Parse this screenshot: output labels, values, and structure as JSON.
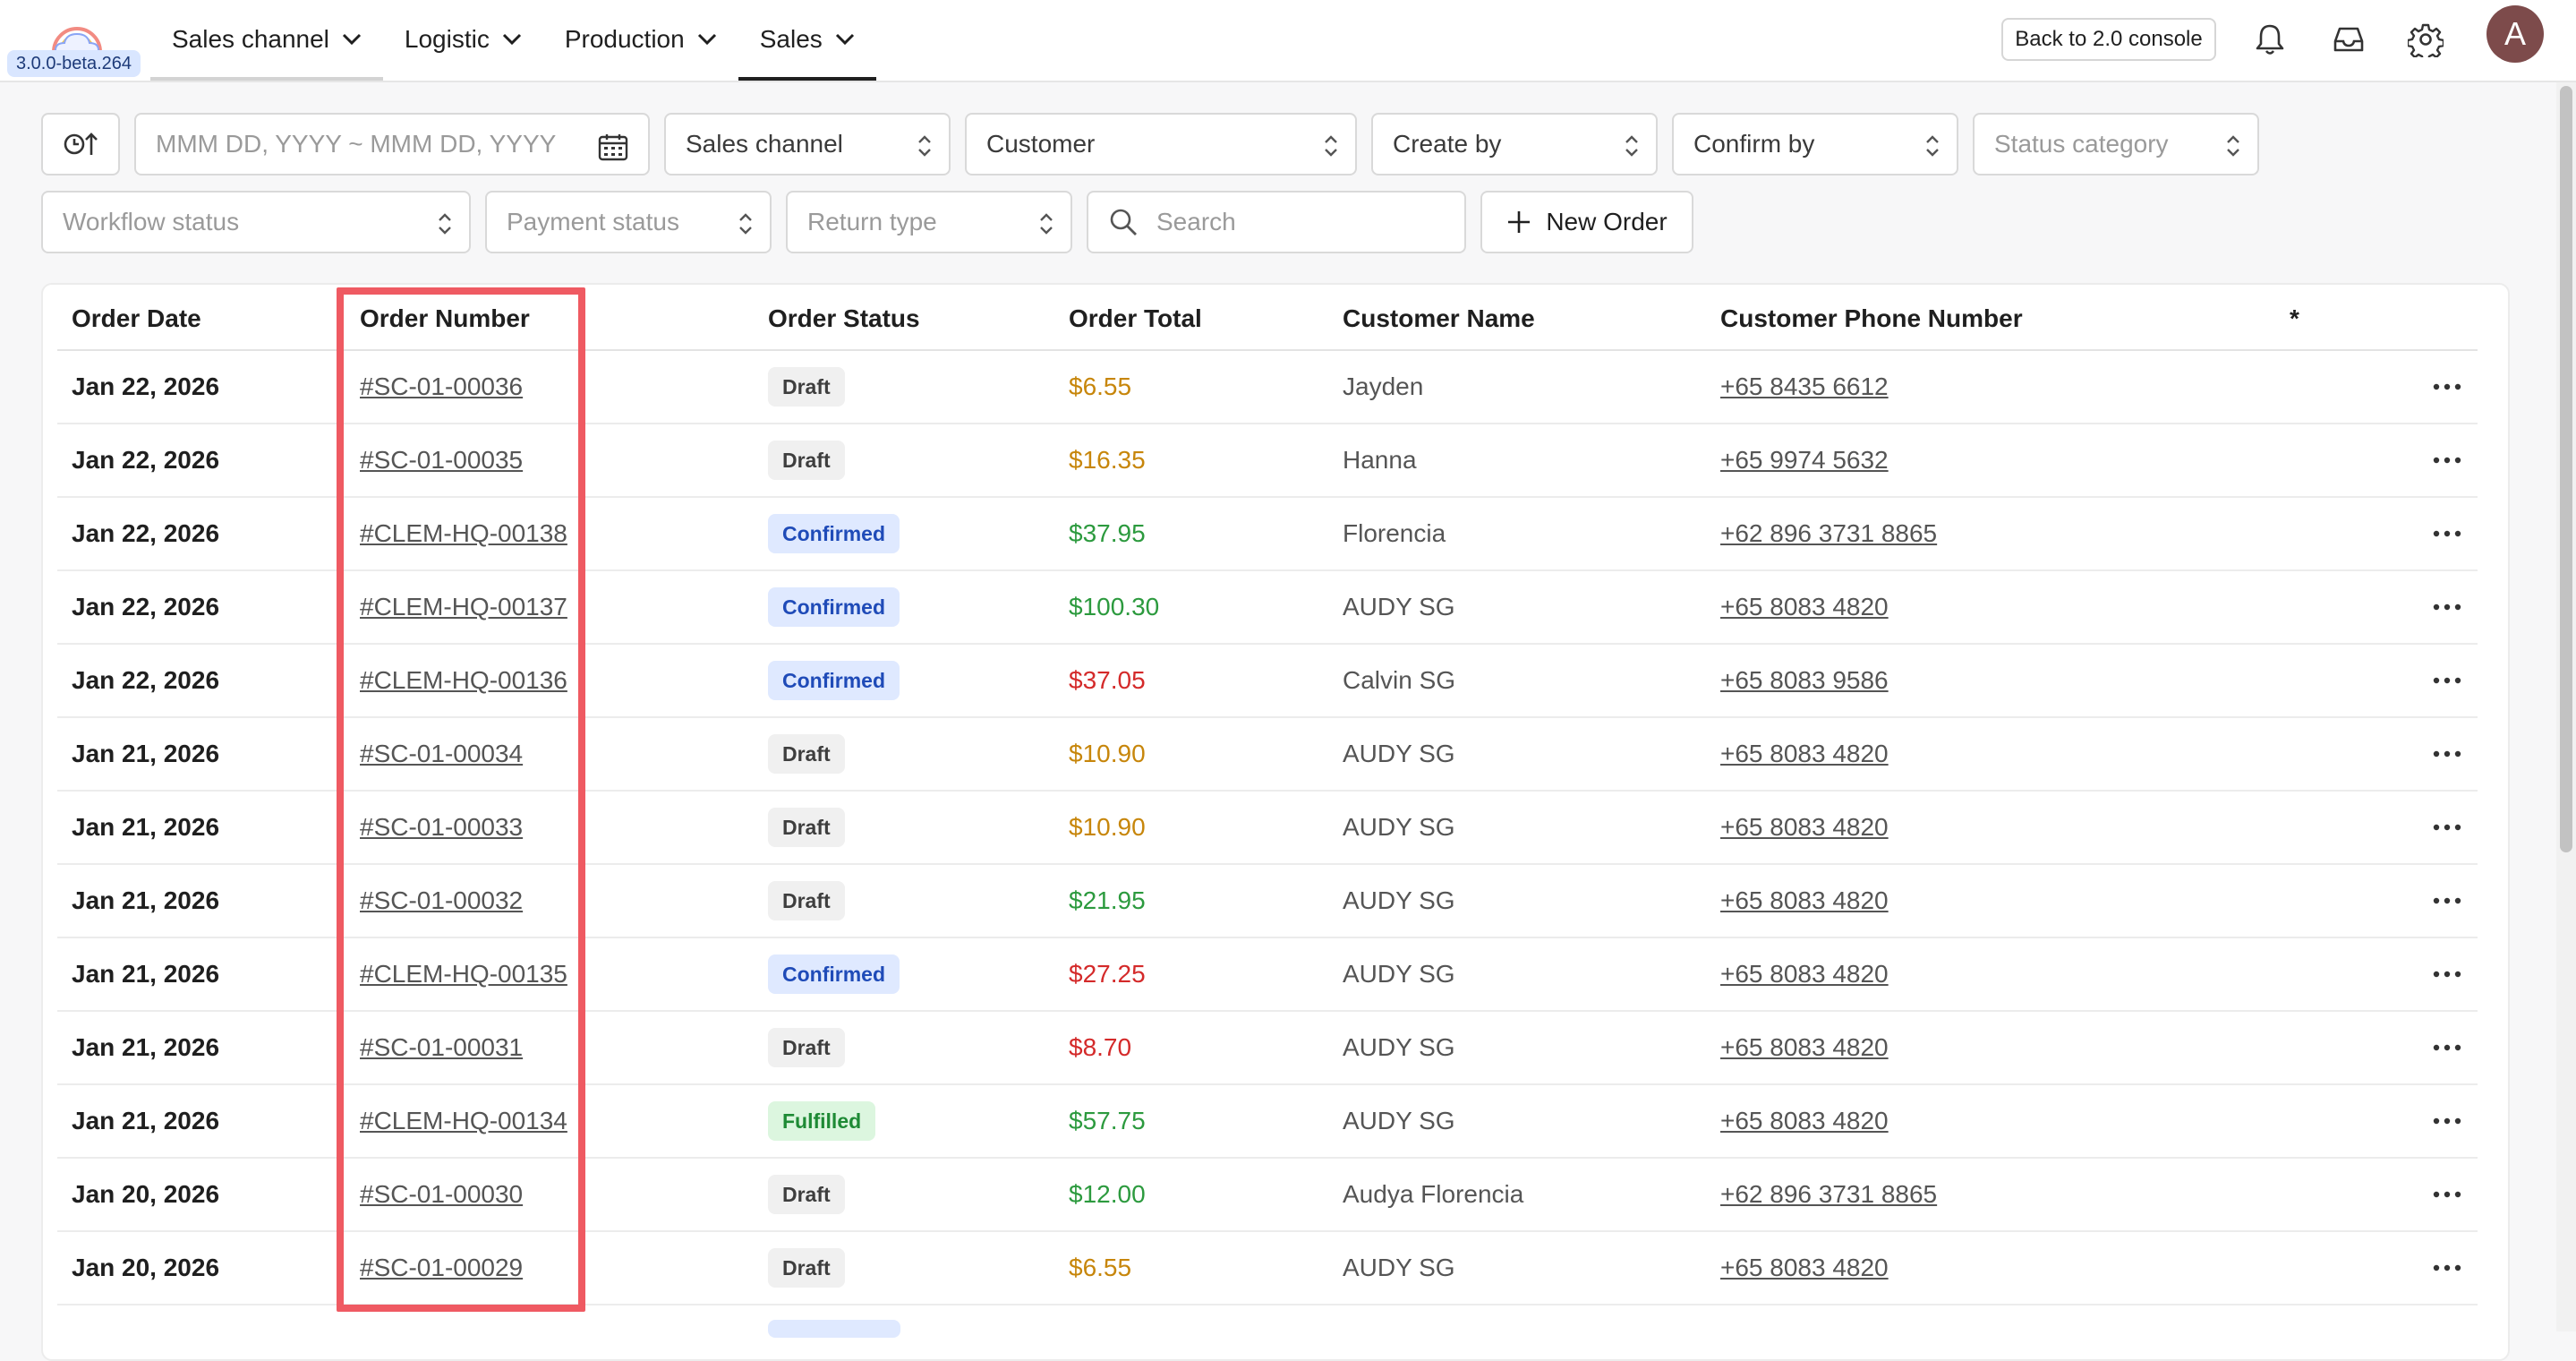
{
  "app": {
    "version": "3.0.0-beta.264",
    "nav": [
      {
        "label": "Sales channel"
      },
      {
        "label": "Logistic"
      },
      {
        "label": "Production"
      },
      {
        "label": "Sales"
      }
    ],
    "back_button": "Back to 2.0 console",
    "avatar_initial": "A",
    "active_tab": "Sales"
  },
  "filters": {
    "date_range_placeholder": "MMM DD, YYYY ~ MMM DD, YYYY",
    "sales_channel": "Sales channel",
    "customer": "Customer",
    "create_by": "Create by",
    "confirm_by": "Confirm by",
    "status_category": "Status category",
    "workflow_status": "Workflow status",
    "payment_status": "Payment status",
    "return_type": "Return type",
    "search_placeholder": "Search",
    "new_order": "New Order"
  },
  "table": {
    "columns": [
      "Order Date",
      "Order Number",
      "Order Status",
      "Order Total",
      "Customer Name",
      "Customer Phone Number",
      "*"
    ],
    "rows": [
      {
        "date": "Jan 22, 2026",
        "number": "#SC-01-00036",
        "status": "Draft",
        "total": "$6.55",
        "total_color": "orange",
        "name": "Jayden",
        "phone": "+65 8435 6612"
      },
      {
        "date": "Jan 22, 2026",
        "number": "#SC-01-00035",
        "status": "Draft",
        "total": "$16.35",
        "total_color": "orange",
        "name": "Hanna",
        "phone": "+65 9974 5632"
      },
      {
        "date": "Jan 22, 2026",
        "number": "#CLEM-HQ-00138",
        "status": "Confirmed",
        "total": "$37.95",
        "total_color": "green",
        "name": "Florencia",
        "phone": "+62 896 3731 8865"
      },
      {
        "date": "Jan 22, 2026",
        "number": "#CLEM-HQ-00137",
        "status": "Confirmed",
        "total": "$100.30",
        "total_color": "green",
        "name": "AUDY SG",
        "phone": "+65 8083 4820"
      },
      {
        "date": "Jan 22, 2026",
        "number": "#CLEM-HQ-00136",
        "status": "Confirmed",
        "total": "$37.05",
        "total_color": "red",
        "name": "Calvin SG",
        "phone": "+65 8083 9586"
      },
      {
        "date": "Jan 21, 2026",
        "number": "#SC-01-00034",
        "status": "Draft",
        "total": "$10.90",
        "total_color": "orange",
        "name": "AUDY SG",
        "phone": "+65 8083 4820"
      },
      {
        "date": "Jan 21, 2026",
        "number": "#SC-01-00033",
        "status": "Draft",
        "total": "$10.90",
        "total_color": "orange",
        "name": "AUDY SG",
        "phone": "+65 8083 4820"
      },
      {
        "date": "Jan 21, 2026",
        "number": "#SC-01-00032",
        "status": "Draft",
        "total": "$21.95",
        "total_color": "green",
        "name": "AUDY SG",
        "phone": "+65 8083 4820"
      },
      {
        "date": "Jan 21, 2026",
        "number": "#CLEM-HQ-00135",
        "status": "Confirmed",
        "total": "$27.25",
        "total_color": "red",
        "name": "AUDY SG",
        "phone": "+65 8083 4820"
      },
      {
        "date": "Jan 21, 2026",
        "number": "#SC-01-00031",
        "status": "Draft",
        "total": "$8.70",
        "total_color": "red",
        "name": "AUDY SG",
        "phone": "+65 8083 4820"
      },
      {
        "date": "Jan 21, 2026",
        "number": "#CLEM-HQ-00134",
        "status": "Fulfilled",
        "total": "$57.75",
        "total_color": "green",
        "name": "AUDY SG",
        "phone": "+65 8083 4820"
      },
      {
        "date": "Jan 20, 2026",
        "number": "#SC-01-00030",
        "status": "Draft",
        "total": "$12.00",
        "total_color": "green",
        "name": "Audya Florencia",
        "phone": "+62 896 3731 8865"
      },
      {
        "date": "Jan 20, 2026",
        "number": "#SC-01-00029",
        "status": "Draft",
        "total": "$6.55",
        "total_color": "orange",
        "name": "AUDY SG",
        "phone": "+65 8083 4820"
      }
    ]
  },
  "icons": {
    "sort": "clock-sort-icon",
    "calendar": "calendar-icon",
    "bell": "bell-icon",
    "inbox": "inbox-icon",
    "settings": "gear-icon",
    "row_actions": "more-horizontal-icon"
  },
  "colors": {
    "highlight": "#ef5a62",
    "draft_badge": "#f0f0f0",
    "confirmed_badge": "#dfe9ff",
    "fulfilled_badge": "#dcf6df",
    "amount_orange": "#c7860b",
    "amount_green": "#2c9a3e",
    "amount_red": "#d42a2a"
  }
}
